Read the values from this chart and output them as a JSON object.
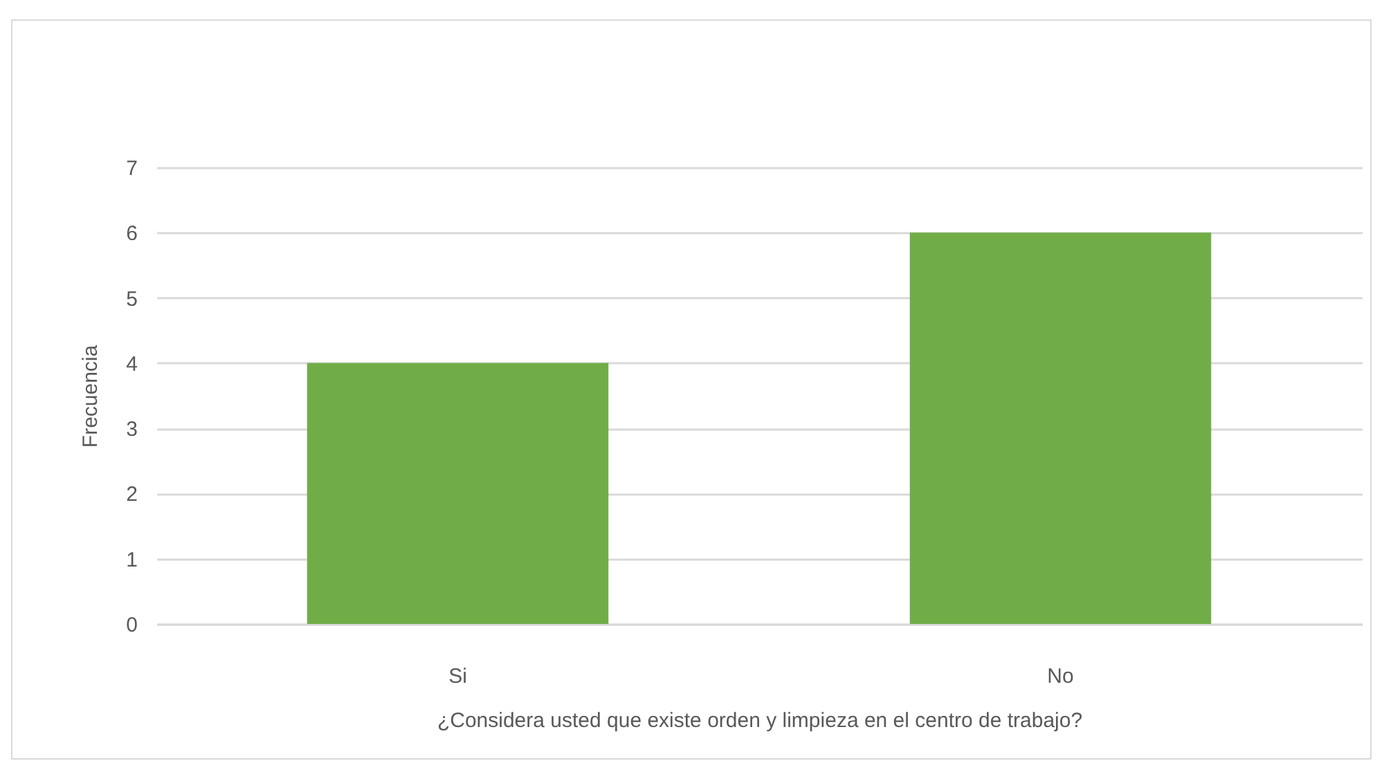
{
  "chart_data": {
    "type": "bar",
    "categories": [
      "Si",
      "No"
    ],
    "values": [
      4,
      6
    ],
    "color": "#70ad47",
    "xlabel": "¿Considera usted que existe orden y limpieza en el centro de trabajo?",
    "ylabel": "Frecuencia",
    "ylim": [
      0,
      7
    ],
    "yticks": [
      0,
      1,
      2,
      3,
      4,
      5,
      6,
      7
    ],
    "grid": "y"
  }
}
